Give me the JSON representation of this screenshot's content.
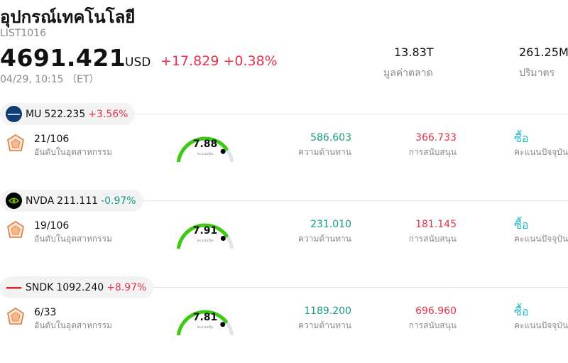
{
  "header": {
    "title": "อุปกรณ์เทคโนโลยี",
    "code": "LIST1016",
    "price": "4691.421",
    "currency": "USD",
    "change": "+17.829 +0.38%",
    "time": "04/29, 10:15 （ET）",
    "market_cap_value": "13.83T",
    "market_cap_label": "มูลค่าตลาด",
    "volume_value": "261.25M",
    "volume_label": "ปริมาตร"
  },
  "colors": {
    "up": "#e6324b",
    "down": "#169c80",
    "buy": "#21b8c4",
    "gauge": "#3ec914"
  },
  "labels": {
    "rank": "อันดับในอุตสาหกรรม",
    "score": "คะแนนหุ้น",
    "resistance": "ความต้านทาน",
    "support": "การสนับสนุน",
    "rating_label": "คะแนนปัจจุบัน"
  },
  "stocks": [
    {
      "symbol": "MU",
      "price": "522.235",
      "change": "+3.56%",
      "direction": "up",
      "logo_icon": "micron-logo-icon",
      "rank": "21/106",
      "score": "7.88",
      "score_fraction": 0.788,
      "resistance": "586.603",
      "support": "366.733",
      "rating": "ซื้อ"
    },
    {
      "symbol": "NVDA",
      "price": "211.111",
      "change": "-0.97%",
      "direction": "down",
      "logo_icon": "nvidia-logo-icon",
      "rank": "19/106",
      "score": "7.91",
      "score_fraction": 0.791,
      "resistance": "231.010",
      "support": "181.145",
      "rating": "ซื้อ"
    },
    {
      "symbol": "SNDK",
      "price": "1092.240",
      "change": "+8.97%",
      "direction": "up",
      "logo_icon": "sandisk-logo-icon",
      "rank": "6/33",
      "score": "7.81",
      "score_fraction": 0.781,
      "resistance": "1189.200",
      "support": "696.960",
      "rating": "ซื้อ"
    }
  ]
}
